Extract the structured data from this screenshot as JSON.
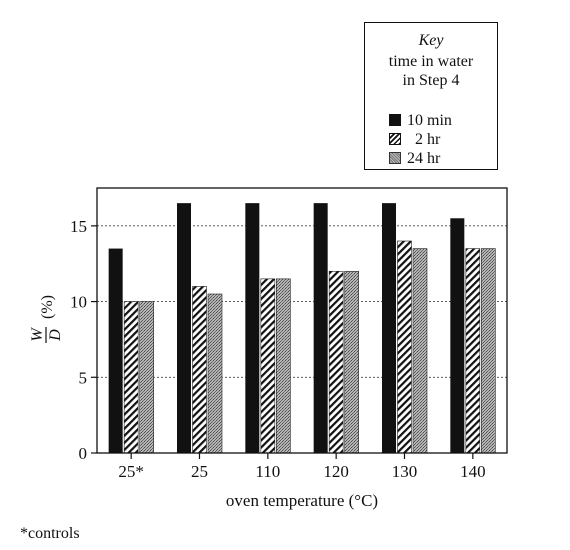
{
  "chart_data": {
    "type": "bar",
    "title": "",
    "xlabel": "oven temperature (°C)",
    "ylabel_num": "W",
    "ylabel_den": "D",
    "ylabel_unit": "(%)",
    "ylim": [
      0,
      17.5
    ],
    "yticks": [
      0,
      5,
      10,
      15
    ],
    "grid": "dashed horizontal at y ticks",
    "categories": [
      "25*",
      "25",
      "110",
      "120",
      "130",
      "140"
    ],
    "series": [
      {
        "name": "10 min",
        "values": [
          13.5,
          16.5,
          16.5,
          16.5,
          16.5,
          15.5
        ],
        "fill": "solid-black"
      },
      {
        "name": "2 hr",
        "values": [
          10,
          11,
          11.5,
          12,
          14,
          13.5
        ],
        "fill": "diagonal-hatch"
      },
      {
        "name": "24 hr",
        "values": [
          10,
          10.5,
          11.5,
          12,
          13.5,
          13.5
        ],
        "fill": "gray-stipple"
      }
    ],
    "legend": {
      "placement": "top-right",
      "title": "Key",
      "subtitle_line1": "time in water",
      "subtitle_line2": "in Step 4"
    }
  },
  "footnote": "*controls",
  "colors": {
    "black": "#111111",
    "gray": "#9a9a9a"
  }
}
